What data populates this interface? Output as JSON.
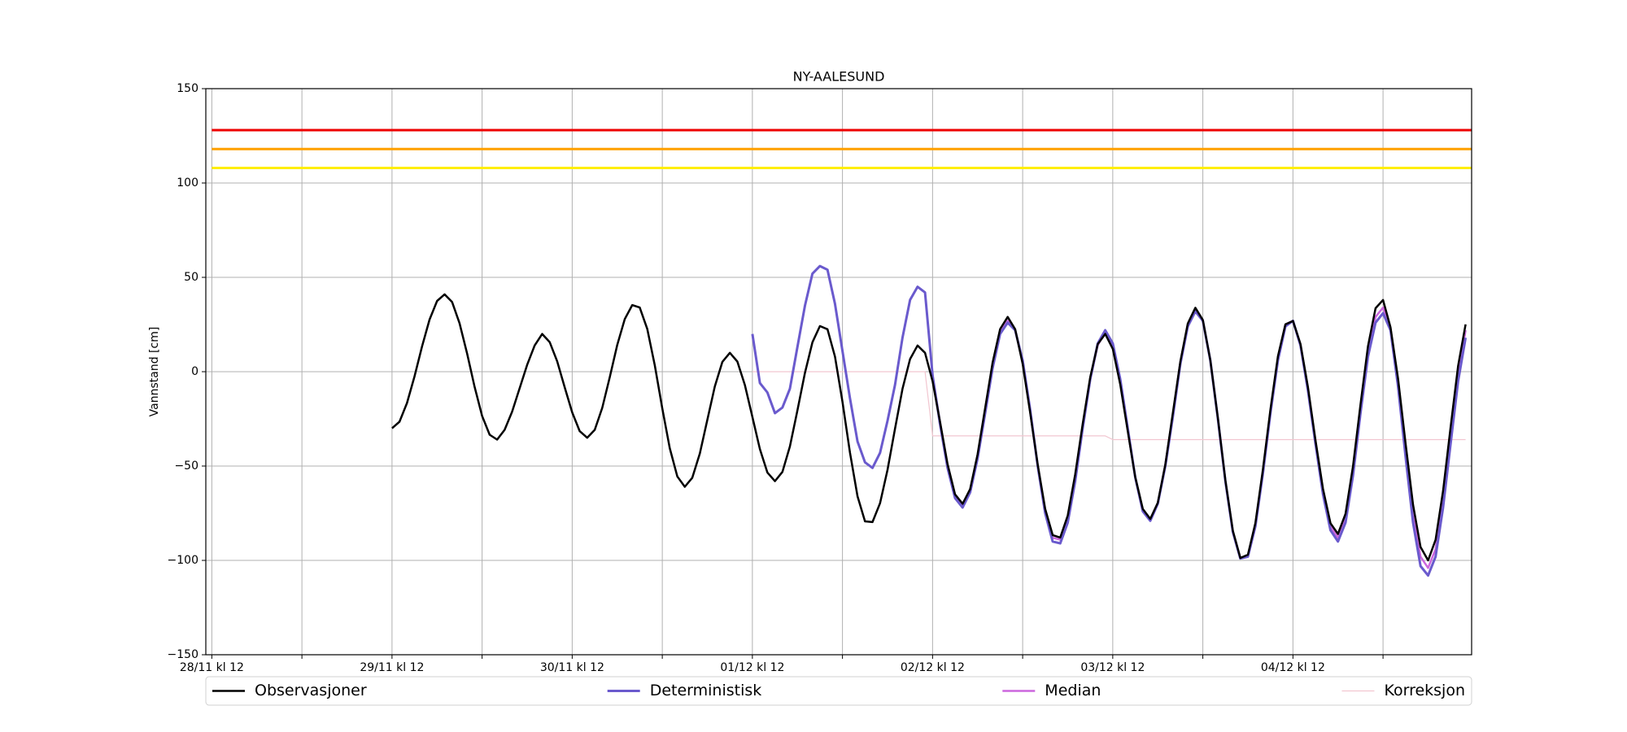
{
  "chart_data": {
    "type": "line",
    "title": "NY-AALESUND",
    "y_label": "Vannstand [cm]",
    "xlim": [
      -0.8,
      167.8
    ],
    "ylim": [
      -150,
      150
    ],
    "xticks": [
      {
        "value": 0,
        "label": "28/11 kl 12"
      },
      {
        "value": 24,
        "label": "29/11 kl 12"
      },
      {
        "value": 48,
        "label": "30/11 kl 12"
      },
      {
        "value": 72,
        "label": "01/12 kl 12"
      },
      {
        "value": 96,
        "label": "02/12 kl 12"
      },
      {
        "value": 120,
        "label": "03/12 kl 12"
      },
      {
        "value": 144,
        "label": "04/12 kl 12"
      }
    ],
    "xminorticks": [
      12,
      36,
      60,
      84,
      108,
      132,
      156
    ],
    "yticks": [
      {
        "value": -150,
        "label": "−150"
      },
      {
        "value": -100,
        "label": "−100"
      },
      {
        "value": -50,
        "label": "−50"
      },
      0,
      50,
      100,
      150
    ],
    "grid": true,
    "legend_loc": "below",
    "hlines": [
      {
        "value": 128,
        "color": "#ee0000"
      },
      {
        "value": 118,
        "color": "#ffa000"
      },
      {
        "value": 108,
        "color": "#ffee00"
      }
    ],
    "x": [
      24,
      25,
      26,
      27,
      28,
      29,
      30,
      31,
      32,
      33,
      34,
      35,
      36,
      37,
      38,
      39,
      40,
      41,
      42,
      43,
      44,
      45,
      46,
      47,
      48,
      49,
      50,
      51,
      52,
      53,
      54,
      55,
      56,
      57,
      58,
      59,
      60,
      61,
      62,
      63,
      64,
      65,
      66,
      67,
      68,
      69,
      70,
      71,
      72,
      73,
      74,
      75,
      76,
      77,
      78,
      79,
      80,
      81,
      82,
      83,
      84,
      85,
      86,
      87,
      88,
      89,
      90,
      91,
      92,
      93,
      94,
      95,
      96,
      97,
      98,
      99,
      100,
      101,
      102,
      103,
      104,
      105,
      106,
      107,
      108,
      109,
      110,
      111,
      112,
      113,
      114,
      115,
      116,
      117,
      118,
      119,
      120,
      121,
      122,
      123,
      124,
      125,
      126,
      127,
      128,
      129,
      130,
      131,
      132,
      133,
      134,
      135,
      136,
      137,
      138,
      139,
      140,
      141,
      142,
      143,
      144,
      145,
      146,
      147,
      148,
      149,
      150,
      151,
      152,
      153,
      154,
      155,
      156,
      157,
      158,
      159,
      160,
      161,
      162,
      163,
      164,
      165,
      166,
      167
    ],
    "series": [
      {
        "name": "Observasjoner",
        "color": "#000000",
        "width": 2.5,
        "values": [
          -30,
          -26.5,
          -16.6,
          -2.4,
          13.4,
          27.6,
          37.5,
          41,
          37,
          25.7,
          9.6,
          -8,
          -23.4,
          -33.4,
          -36,
          -30.8,
          -21.2,
          -8.7,
          3.6,
          13.9,
          20,
          15.7,
          5.5,
          -8.2,
          -21.6,
          -31.5,
          -35,
          -30.8,
          -19.2,
          -3,
          14.1,
          27.9,
          35.3,
          34,
          22.6,
          3.4,
          -19.4,
          -40.5,
          -55.5,
          -61,
          -56.2,
          -43.3,
          -25.5,
          -7.8,
          5.2,
          10,
          5.4,
          -7,
          -24,
          -41,
          -53.4,
          -58,
          -53.1,
          -39.6,
          -20.6,
          -0.6,
          15.6,
          24.2,
          22.5,
          8,
          -15.9,
          -42.8,
          -66,
          -79.3,
          -79.7,
          -69.7,
          -52,
          -30.2,
          -9.1,
          6.7,
          13.9,
          10,
          -5.1,
          -26.7,
          -49,
          -65,
          -70,
          -62.3,
          -43.8,
          -19.3,
          4.9,
          22.6,
          29,
          22.5,
          4.2,
          -21.6,
          -49.2,
          -72.7,
          -86.6,
          -87.9,
          -76.3,
          -54.4,
          -27.7,
          -2.9,
          14.6,
          20,
          12.1,
          -6.8,
          -31.5,
          -55.8,
          -72.7,
          -78,
          -69.5,
          -49.2,
          -22,
          5.2,
          25.5,
          33.9,
          27.4,
          6.1,
          -24.6,
          -57.5,
          -84.3,
          -98.7,
          -97,
          -80.2,
          -52,
          -20,
          8.2,
          25.1,
          26.9,
          14.7,
          -8.2,
          -36.1,
          -62.1,
          -80.3,
          -86,
          -75.3,
          -50.1,
          -17.4,
          13.5,
          33.6,
          38,
          23.5,
          -3.8,
          -38,
          -70.5,
          -92.9,
          -100,
          -89.1,
          -63.2,
          -29.3,
          3.1,
          25.1
        ]
      },
      {
        "name": "Deterministisk",
        "color": "#6a5acd",
        "width": 3,
        "values": [
          null,
          null,
          null,
          null,
          null,
          null,
          null,
          null,
          null,
          null,
          null,
          null,
          null,
          null,
          null,
          null,
          null,
          null,
          null,
          null,
          null,
          null,
          null,
          null,
          null,
          null,
          null,
          null,
          null,
          null,
          null,
          null,
          null,
          null,
          null,
          null,
          null,
          null,
          null,
          null,
          null,
          null,
          null,
          null,
          null,
          null,
          null,
          null,
          20,
          -6,
          -11,
          -22,
          -19,
          -9,
          13,
          35,
          52,
          56,
          54,
          36,
          11,
          -14,
          -37,
          -48,
          -51,
          -43,
          -26,
          -7,
          18,
          38,
          45,
          42,
          -2,
          -28,
          -51,
          -67,
          -72,
          -64,
          -46,
          -22,
          2,
          20,
          26,
          22,
          6,
          -20,
          -50,
          -75,
          -90,
          -91,
          -80,
          -58,
          -30,
          -4,
          15,
          22,
          15,
          -4,
          -30,
          -56,
          -74,
          -79,
          -70,
          -50,
          -24,
          4,
          24,
          32,
          27,
          6,
          -25,
          -58,
          -85,
          -99,
          -98,
          -82,
          -54,
          -22,
          6,
          24,
          27,
          14,
          -10,
          -38,
          -65,
          -84,
          -90,
          -80,
          -55,
          -22,
          8,
          26,
          31,
          22,
          -8,
          -45,
          -80,
          -103,
          -108,
          -98,
          -72,
          -38,
          -5,
          18
        ]
      },
      {
        "name": "Median",
        "color": "#cc66dd",
        "width": 2.5,
        "values": [
          null,
          null,
          null,
          null,
          null,
          null,
          null,
          null,
          null,
          null,
          null,
          null,
          null,
          null,
          null,
          null,
          null,
          null,
          null,
          null,
          null,
          null,
          null,
          null,
          null,
          null,
          null,
          null,
          null,
          null,
          null,
          null,
          null,
          null,
          null,
          null,
          null,
          null,
          null,
          null,
          null,
          null,
          null,
          null,
          null,
          null,
          null,
          null,
          null,
          null,
          null,
          null,
          null,
          null,
          null,
          null,
          null,
          null,
          null,
          null,
          null,
          null,
          null,
          null,
          null,
          null,
          null,
          null,
          null,
          null,
          null,
          null,
          -3,
          -27,
          -50,
          -66,
          -71,
          -63,
          -45,
          -21,
          3,
          21,
          27,
          22,
          5,
          -21,
          -50,
          -74,
          -88,
          -89,
          -78,
          -56,
          -29,
          -4,
          14,
          21,
          14,
          -5,
          -31,
          -56,
          -74,
          -79,
          -70,
          -49,
          -23,
          5,
          25,
          33,
          27,
          6,
          -25,
          -58,
          -85,
          -99,
          -98,
          -81,
          -53,
          -21,
          7,
          25,
          27,
          14,
          -9,
          -37,
          -64,
          -82,
          -88,
          -78,
          -53,
          -20,
          10,
          29,
          34,
          23,
          -6,
          -42,
          -76,
          -98,
          -104,
          -94,
          -68,
          -34,
          -2,
          22
        ]
      },
      {
        "name": "Korreksjon",
        "color": "#f2c6d0",
        "width": 1.2,
        "values": [
          null,
          null,
          null,
          null,
          null,
          null,
          null,
          null,
          null,
          null,
          null,
          null,
          null,
          null,
          null,
          null,
          null,
          null,
          null,
          null,
          null,
          null,
          null,
          null,
          null,
          null,
          null,
          null,
          null,
          null,
          null,
          null,
          null,
          null,
          null,
          null,
          null,
          null,
          null,
          null,
          null,
          null,
          null,
          null,
          null,
          null,
          null,
          null,
          0,
          0,
          0,
          0,
          0,
          0,
          0,
          0,
          0,
          0,
          0,
          0,
          0,
          0,
          0,
          0,
          0,
          0,
          0,
          0,
          0,
          0,
          0,
          0,
          -34,
          -34,
          -34,
          -34,
          -34,
          -34,
          -34,
          -34,
          -34,
          -34,
          -34,
          -34,
          -34,
          -34,
          -34,
          -34,
          -34,
          -34,
          -34,
          -34,
          -34,
          -34,
          -34,
          -34,
          -36,
          -36,
          -36,
          -36,
          -36,
          -36,
          -36,
          -36,
          -36,
          -36,
          -36,
          -36,
          -36,
          -36,
          -36,
          -36,
          -36,
          -36,
          -36,
          -36,
          -36,
          -36,
          -36,
          -36,
          -36,
          -36,
          -36,
          -36,
          -36,
          -36,
          -36,
          -36,
          -36,
          -36,
          -36,
          -36,
          -36,
          -36,
          -36,
          -36,
          -36,
          -36,
          -36,
          -36,
          -36,
          -36,
          -36,
          -36
        ]
      }
    ]
  }
}
